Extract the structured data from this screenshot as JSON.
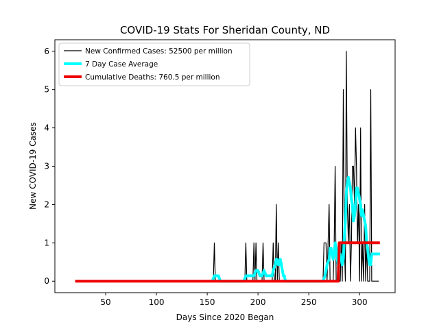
{
  "chart_data": {
    "type": "line",
    "title": "COVID-19 Stats For Sheridan County, ND",
    "xlabel": "Days Since 2020 Began",
    "ylabel": "New COVID-19 Cases",
    "xlim": [
      0,
      335
    ],
    "ylim": [
      -0.3,
      6.3
    ],
    "xticks": [
      50,
      100,
      150,
      200,
      250,
      300
    ],
    "yticks": [
      0,
      1,
      2,
      3,
      4,
      5,
      6
    ],
    "grid": false,
    "legend_position": "top-left",
    "series": [
      {
        "name": "New Confirmed Cases: 52500 per million",
        "color": "#000000",
        "style": "thin-line",
        "x": [
          155,
          156,
          157,
          158,
          159,
          186,
          187,
          188,
          189,
          190,
          195,
          196,
          197,
          198,
          199,
          200,
          203,
          204,
          205,
          206,
          207,
          213,
          214,
          215,
          216,
          217,
          218,
          219,
          220,
          221,
          222,
          223,
          224,
          225,
          226,
          264,
          265,
          266,
          267,
          268,
          269,
          270,
          271,
          272,
          273,
          274,
          275,
          276,
          277,
          278,
          279,
          280,
          281,
          282,
          283,
          284,
          285,
          286,
          287,
          288,
          289,
          290,
          291,
          292,
          293,
          294,
          295,
          296,
          297,
          298,
          299,
          300,
          301,
          302,
          303,
          304,
          305,
          306,
          307,
          308,
          309,
          310,
          311,
          312,
          313,
          314,
          315,
          316,
          317,
          318,
          319
        ],
        "y": [
          0,
          0,
          1,
          0,
          0,
          0,
          0,
          1,
          0,
          0,
          0,
          1,
          0,
          1,
          0,
          0,
          0,
          0,
          1,
          0,
          0,
          0,
          0,
          1,
          0,
          0,
          2,
          0,
          1,
          0,
          0,
          0,
          0,
          0,
          0,
          0,
          1,
          1,
          1,
          0,
          1,
          2,
          0,
          0,
          0,
          0,
          1,
          3,
          0,
          0,
          1,
          0,
          0,
          1,
          0,
          5,
          1,
          0,
          6,
          2,
          1,
          2,
          0,
          1,
          3,
          3,
          2,
          4,
          3,
          1,
          2,
          0,
          4,
          0,
          1,
          0,
          2,
          0,
          1,
          0,
          0,
          0,
          5,
          0,
          0,
          0,
          0,
          0,
          0,
          0,
          0
        ]
      },
      {
        "name": "7 Day Case Average",
        "color": "#00ffff",
        "style": "thick-line",
        "x": [
          155,
          157,
          158,
          160,
          161,
          163,
          186,
          188,
          190,
          192,
          194,
          196,
          198,
          200,
          202,
          204,
          206,
          208,
          210,
          212,
          214,
          215,
          217,
          218,
          219,
          220,
          221,
          222,
          223,
          224,
          225,
          226,
          227,
          264,
          266,
          268,
          270,
          271,
          272,
          273,
          274,
          275,
          276,
          277,
          278,
          279,
          280,
          281,
          282,
          283,
          284,
          285,
          286,
          287,
          288,
          289,
          290,
          291,
          292,
          293,
          294,
          295,
          296,
          297,
          298,
          299,
          300,
          301,
          302,
          303,
          304,
          305,
          306,
          307,
          308,
          309,
          310,
          311,
          312,
          313,
          314,
          315,
          316,
          317,
          318,
          319,
          320
        ],
        "y": [
          0,
          0.14,
          0.14,
          0.14,
          0.14,
          0.0,
          0,
          0.14,
          0.14,
          0.14,
          0.14,
          0.14,
          0.28,
          0.28,
          0.14,
          0.14,
          0.28,
          0.14,
          0.14,
          0.14,
          0.14,
          0.28,
          0.43,
          0.57,
          0.57,
          0.43,
          0.43,
          0.57,
          0.43,
          0.28,
          0.14,
          0.14,
          0.0,
          0,
          0.14,
          0.43,
          0.57,
          0.86,
          0.86,
          0.71,
          0.57,
          0.71,
          1.0,
          0.86,
          0.57,
          0.43,
          0.57,
          0.71,
          0.57,
          0.43,
          0.57,
          1.14,
          1.57,
          2.29,
          2.57,
          2.71,
          2.57,
          2.43,
          2.14,
          2.0,
          1.57,
          1.71,
          2.0,
          2.43,
          2.43,
          2.29,
          2.14,
          2.0,
          1.71,
          1.86,
          1.71,
          1.57,
          1.43,
          1.0,
          0.86,
          0.57,
          0.43,
          0.43,
          0.71,
          0.71,
          0.71,
          0.71,
          0.71,
          0.71,
          0.71,
          0.71,
          0.71
        ]
      },
      {
        "name": "Cumulative Deaths: 760.5 per million",
        "color": "#ee0000",
        "style": "thick-line",
        "x": [
          20,
          279,
          280,
          320
        ],
        "y": [
          0,
          0,
          1,
          1
        ]
      }
    ]
  }
}
